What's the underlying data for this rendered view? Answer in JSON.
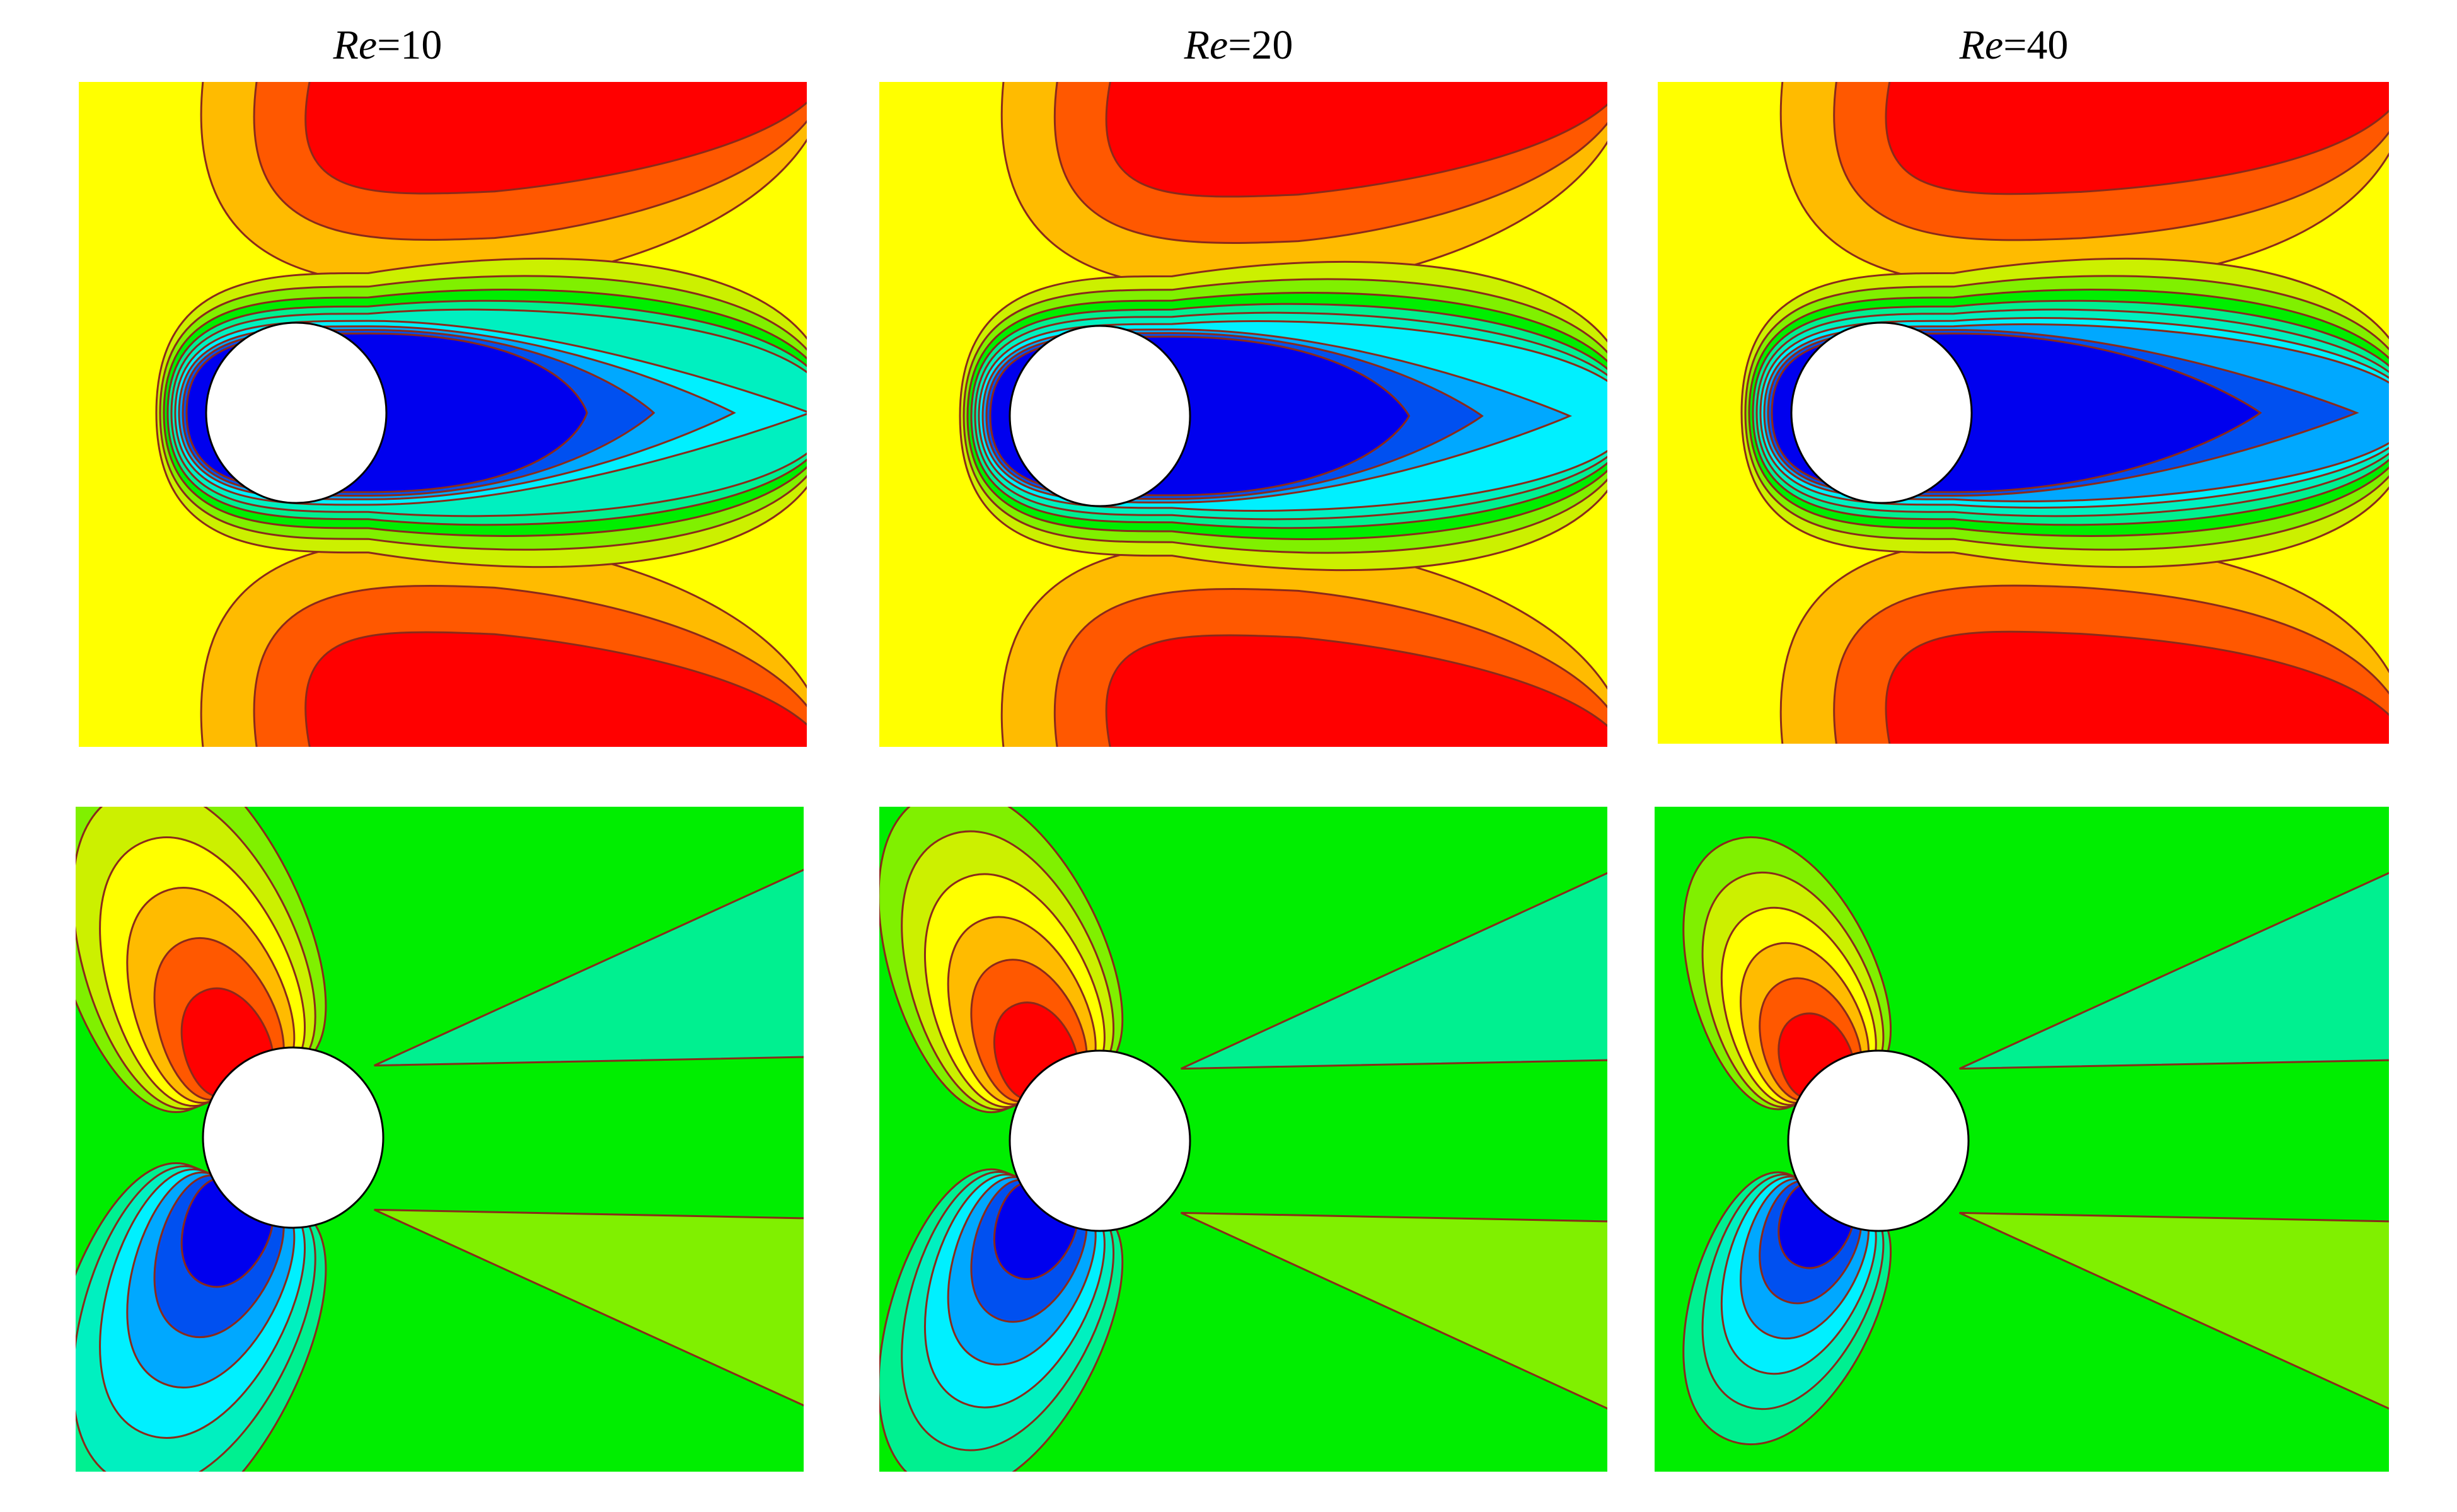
{
  "columns": [
    {
      "title_var": "Re",
      "title_rest": "=10"
    },
    {
      "title_var": "Re",
      "title_rest": "=20"
    },
    {
      "title_var": "Re",
      "title_rest": "=40"
    }
  ],
  "colors": {
    "contour_line": "#8a2a1a",
    "cylinder_fill": "#ffffff",
    "cylinder_edge": "#000000",
    "palette": [
      "#0000ee",
      "#0050f0",
      "#00a8ff",
      "#00f0ff",
      "#00f0c0",
      "#00f090",
      "#00ee00",
      "#80f000",
      "#ccf000",
      "#ffff00",
      "#ffbb00",
      "#ff5800",
      "#ff0000"
    ]
  }
}
